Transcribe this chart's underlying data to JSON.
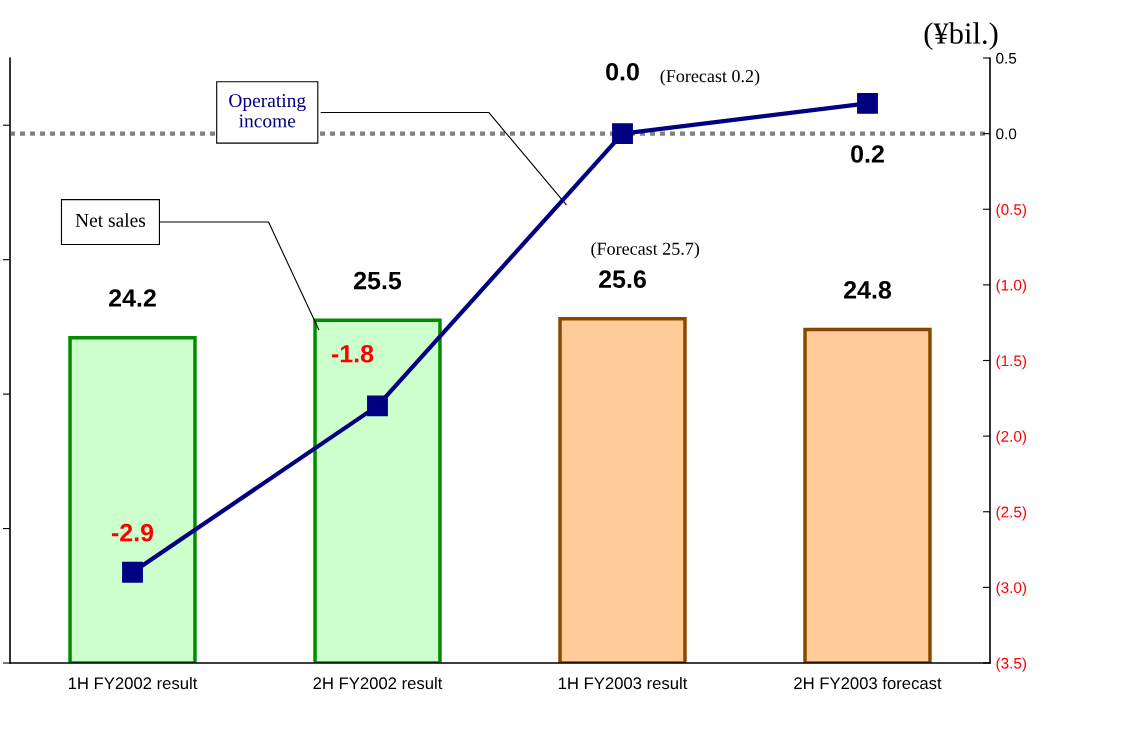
{
  "chart_data": {
    "type": "bar",
    "categories": [
      "1H FY2002 result",
      "2H FY2002 result",
      "1H FY2003 result",
      "2H FY2003 forecast"
    ],
    "series": [
      {
        "name": "Net sales",
        "colors": [
          "#ccffcc",
          "#ccffcc",
          "#ffcc99",
          "#ffcc99"
        ],
        "values": [
          24.2,
          25.5,
          25.6,
          24.8
        ]
      },
      {
        "name": "Operating income",
        "type": "line",
        "axis": "y2",
        "color": "#000080",
        "marker": "square",
        "values": [
          -2.9,
          -1.8,
          0.0,
          0.2
        ],
        "value_labels": [
          "-2.9",
          "-1.8",
          "0.0",
          "0.2"
        ]
      }
    ],
    "ylim": [
      0,
      45
    ],
    "yticks": [
      {
        "value": 0,
        "label": null
      },
      {
        "value": 10,
        "label": null
      },
      {
        "value": 20,
        "label": null
      },
      {
        "value": 30,
        "label": null
      },
      {
        "value": 40,
        "label": null
      }
    ],
    "y2lim": [
      -3.5,
      0.5
    ],
    "y2ticks": [
      {
        "value": 0.5,
        "label": "0.5"
      },
      {
        "value": 0.0,
        "label": "0.0"
      },
      {
        "value": -0.5,
        "label": "(0.5)"
      },
      {
        "value": -1.0,
        "label": "(1.0)"
      },
      {
        "value": -1.5,
        "label": "(1.5)"
      },
      {
        "value": -2.0,
        "label": "(2.0)"
      },
      {
        "value": -2.5,
        "label": "(2.5)"
      },
      {
        "value": -3.0,
        "label": "(3.0)"
      },
      {
        "value": -3.5,
        "label": "(3.5)"
      }
    ],
    "ref_lines": [
      {
        "axis": "y2",
        "value": 0.0,
        "color": "#808080",
        "line_style": "dotted"
      }
    ],
    "data_labels": true,
    "legend": false,
    "grid": false,
    "annotations": [
      "(¥bil.)",
      "(Forecast 0.2)",
      "(Forecast 25.7)"
    ]
  }
}
